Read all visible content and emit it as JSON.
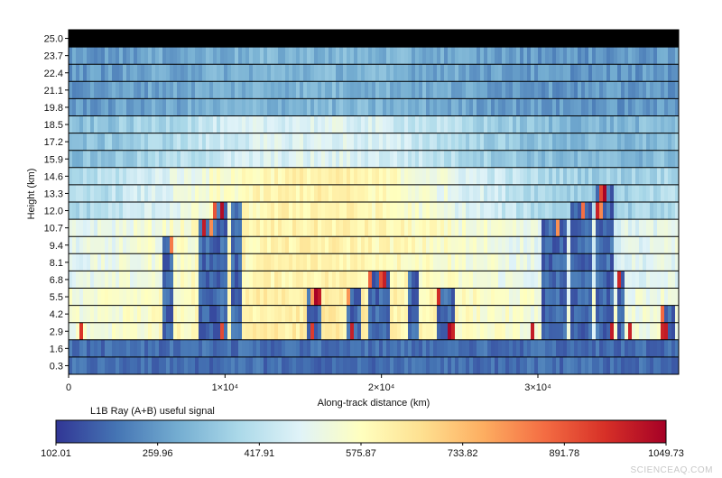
{
  "chart_data": {
    "type": "heatmap",
    "title": "",
    "xlabel": "Along-track distance (km)",
    "ylabel": "Height (km)",
    "x_ticks": [
      {
        "value": 0,
        "label": "0"
      },
      {
        "value": 10000,
        "label": "1×10⁴"
      },
      {
        "value": 20000,
        "label": "2×10⁴"
      },
      {
        "value": 30000,
        "label": "3×10⁴"
      }
    ],
    "xlim": [
      0,
      39000
    ],
    "range_bin_bottoms_km": [
      0.3,
      1.6,
      2.9,
      4.2,
      5.5,
      6.8,
      8.1,
      9.4,
      10.7,
      12.0,
      13.3,
      14.6,
      15.9,
      17.2,
      18.5,
      19.8,
      21.1,
      22.4,
      23.7,
      25.0
    ],
    "height_tick_labels": [
      "0.3",
      "1.6",
      "2.9",
      "4.2",
      "5.5",
      "6.8",
      "8.1",
      "9.4",
      "10.7",
      "12.0",
      "13.3",
      "14.6",
      "15.9",
      "17.2",
      "18.5",
      "19.8",
      "21.1",
      "22.4",
      "23.7",
      "25.0"
    ],
    "colorbar": {
      "label": "L1B Ray (A+B) useful signal",
      "min": 102.01,
      "max": 1049.73,
      "tick_labels": [
        "102.01",
        "259.96",
        "417.91",
        "575.87",
        "733.82",
        "891.78",
        "1049.73"
      ],
      "colormap": [
        "#313695",
        "#4575b4",
        "#74add1",
        "#abd9e9",
        "#e0f3f8",
        "#ffffbf",
        "#fee090",
        "#fdae61",
        "#f46d43",
        "#d73027",
        "#a50026"
      ]
    },
    "cloud_columns_km": [
      {
        "x": [
          6100,
          6800
        ],
        "top_km": 9.6
      },
      {
        "x": [
          8300,
          9200
        ],
        "top_km": 11.5
      },
      {
        "x": [
          9300,
          10100
        ],
        "top_km": 12.0
      },
      {
        "x": [
          10300,
          11100
        ],
        "top_km": 12.2
      },
      {
        "x": [
          15300,
          16100
        ],
        "top_km": 6.2
      },
      {
        "x": [
          17800,
          18700
        ],
        "top_km": 6.4
      },
      {
        "x": [
          19200,
          20600
        ],
        "top_km": 7.9
      },
      {
        "x": [
          21700,
          22300
        ],
        "top_km": 6.9
      },
      {
        "x": [
          23500,
          24600
        ],
        "top_km": 6.4
      },
      {
        "x": [
          30300,
          31900
        ],
        "top_km": 11.2
      },
      {
        "x": [
          32100,
          33500
        ],
        "top_km": 12.9
      },
      {
        "x": [
          33600,
          34800
        ],
        "top_km": 13.3
      },
      {
        "x": [
          35000,
          35500
        ],
        "top_km": 7.5
      },
      {
        "x": [
          37800,
          38800
        ],
        "top_km": 5.0
      }
    ],
    "top_bin_no_data": true
  },
  "watermark": "SCIENCEAQ.COM"
}
